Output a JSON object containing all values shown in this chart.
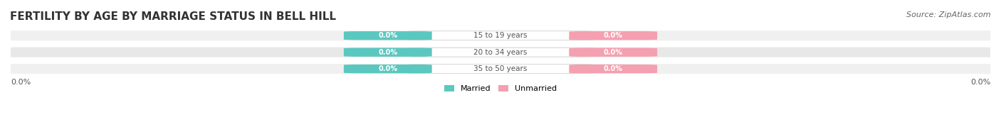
{
  "title": "FERTILITY BY AGE BY MARRIAGE STATUS IN BELL HILL",
  "source": "Source: ZipAtlas.com",
  "categories": [
    "15 to 19 years",
    "20 to 34 years",
    "35 to 50 years"
  ],
  "married_values": [
    0.0,
    0.0,
    0.0
  ],
  "unmarried_values": [
    0.0,
    0.0,
    0.0
  ],
  "married_color": "#5bc8c0",
  "unmarried_color": "#f4a0b0",
  "bar_bg_color": "#e8e8e8",
  "row_bg_colors": [
    "#f5f5f5",
    "#ebebeb",
    "#f5f5f5"
  ],
  "label_color_married": "#ffffff",
  "label_color_unmarried": "#ffffff",
  "center_label_color": "#555555",
  "title_fontsize": 11,
  "source_fontsize": 8,
  "xlim": [
    -1,
    1
  ],
  "ylim_label_left": "0.0%",
  "ylim_label_right": "0.0%",
  "legend_married": "Married",
  "legend_unmarried": "Unmarried",
  "background_color": "#ffffff"
}
